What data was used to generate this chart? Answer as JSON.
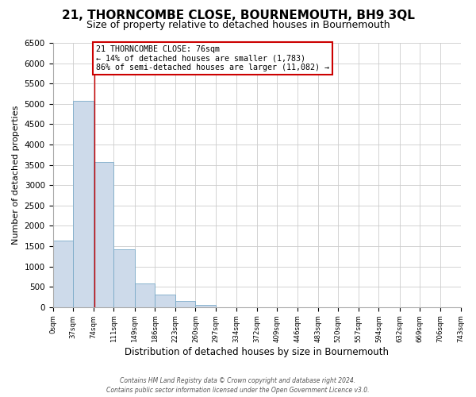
{
  "title": "21, THORNCOMBE CLOSE, BOURNEMOUTH, BH9 3QL",
  "subtitle": "Size of property relative to detached houses in Bournemouth",
  "xlabel": "Distribution of detached houses by size in Bournemouth",
  "ylabel": "Number of detached properties",
  "bar_color": "#cddaea",
  "bar_edge_color": "#7aaac8",
  "bin_edges": [
    0,
    37,
    74,
    111,
    149,
    186,
    223,
    260,
    297,
    334,
    372,
    409,
    446,
    483,
    520,
    557,
    594,
    632,
    669,
    706,
    743
  ],
  "bar_heights": [
    1630,
    5080,
    3580,
    1420,
    580,
    300,
    145,
    60,
    0,
    0,
    0,
    0,
    0,
    0,
    0,
    0,
    0,
    0,
    0,
    0
  ],
  "property_size": 76,
  "property_line_color": "#cc0000",
  "annotation_line1": "21 THORNCOMBE CLOSE: 76sqm",
  "annotation_line2": "← 14% of detached houses are smaller (1,783)",
  "annotation_line3": "86% of semi-detached houses are larger (11,082) →",
  "annotation_box_color": "#ffffff",
  "annotation_box_edge_color": "#cc0000",
  "ylim": [
    0,
    6500
  ],
  "yticks": [
    0,
    500,
    1000,
    1500,
    2000,
    2500,
    3000,
    3500,
    4000,
    4500,
    5000,
    5500,
    6000,
    6500
  ],
  "tick_labels": [
    "0sqm",
    "37sqm",
    "74sqm",
    "111sqm",
    "149sqm",
    "186sqm",
    "223sqm",
    "260sqm",
    "297sqm",
    "334sqm",
    "372sqm",
    "409sqm",
    "446sqm",
    "483sqm",
    "520sqm",
    "557sqm",
    "594sqm",
    "632sqm",
    "669sqm",
    "706sqm",
    "743sqm"
  ],
  "footer_line1": "Contains HM Land Registry data © Crown copyright and database right 2024.",
  "footer_line2": "Contains public sector information licensed under the Open Government Licence v3.0.",
  "background_color": "#ffffff",
  "grid_color": "#cccccc",
  "title_fontsize": 11,
  "subtitle_fontsize": 9
}
